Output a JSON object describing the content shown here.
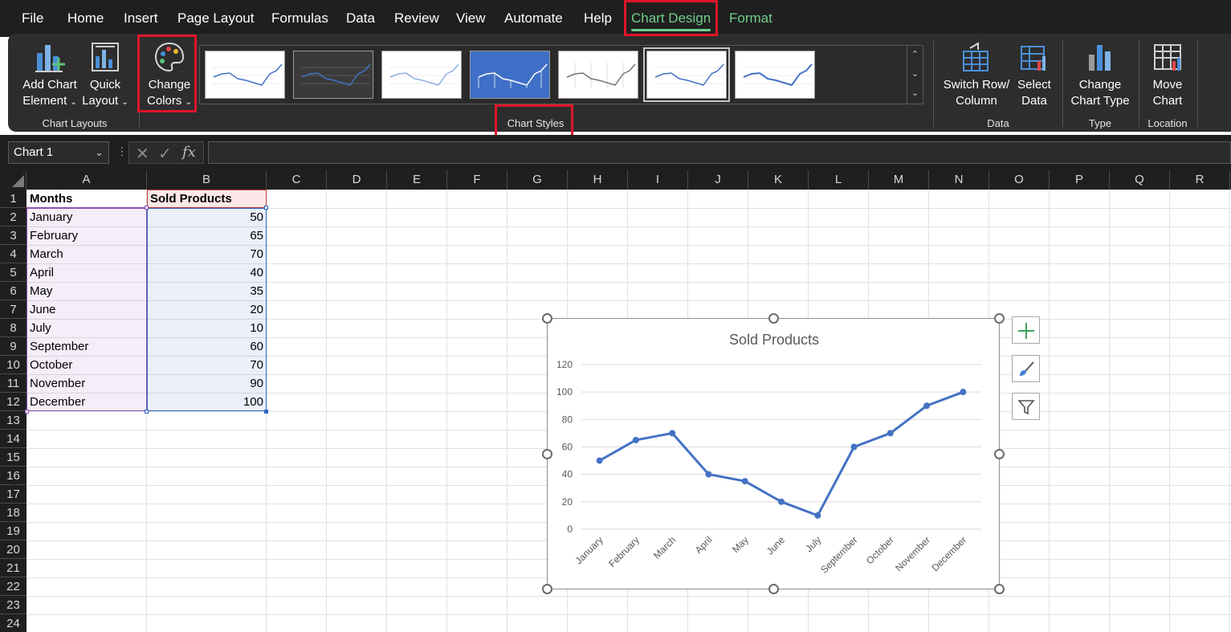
{
  "menu": {
    "items": [
      "File",
      "Home",
      "Insert",
      "Page Layout",
      "Formulas",
      "Data",
      "Review",
      "View",
      "Automate",
      "Help",
      "Chart Design",
      "Format"
    ],
    "active": "Chart Design"
  },
  "ribbon": {
    "chart_layouts": {
      "add_chart_element": [
        "Add Chart",
        "Element"
      ],
      "quick_layout": [
        "Quick",
        "Layout"
      ],
      "group_label": "Chart Layouts"
    },
    "change_colors": [
      "Change",
      "Colors"
    ],
    "chart_styles": {
      "group_label": "Chart Styles",
      "thumbnails": [
        "Style 1",
        "Style 2",
        "Style 3",
        "Style 4",
        "Style 5",
        "Style 6",
        "Style 7"
      ],
      "selected_index": 5
    },
    "data": {
      "switch_row_column": [
        "Switch Row/",
        "Column"
      ],
      "select_data": [
        "Select",
        "Data"
      ],
      "group_label": "Data"
    },
    "type": {
      "change_chart_type": [
        "Change",
        "Chart Type"
      ],
      "group_label": "Type"
    },
    "location": {
      "move_chart": [
        "Move",
        "Chart"
      ],
      "group_label": "Location"
    }
  },
  "formula_bar": {
    "name_box": "Chart 1",
    "fx": "fx",
    "value": ""
  },
  "grid": {
    "columns": [
      "A",
      "B",
      "C",
      "D",
      "E",
      "F",
      "G",
      "H",
      "I",
      "J",
      "K",
      "L",
      "M",
      "N",
      "O",
      "P",
      "Q",
      "R"
    ],
    "rows": [
      "1",
      "2",
      "3",
      "4",
      "5",
      "6",
      "7",
      "8",
      "9",
      "10",
      "11",
      "12",
      "13",
      "14",
      "15",
      "16",
      "17",
      "18",
      "19",
      "20",
      "21",
      "22",
      "23",
      "24"
    ],
    "header": [
      "Months",
      "Sold Products"
    ],
    "data": [
      [
        "January",
        "50"
      ],
      [
        "February",
        "65"
      ],
      [
        "March",
        "70"
      ],
      [
        "April",
        "40"
      ],
      [
        "May",
        "35"
      ],
      [
        "June",
        "20"
      ],
      [
        "July",
        "10"
      ],
      [
        "September",
        "60"
      ],
      [
        "October",
        "70"
      ],
      [
        "November",
        "90"
      ],
      [
        "December",
        "100"
      ]
    ]
  },
  "chart_data": {
    "type": "line",
    "title": "Sold Products",
    "categories": [
      "January",
      "February",
      "March",
      "April",
      "May",
      "June",
      "July",
      "September",
      "October",
      "November",
      "December"
    ],
    "series": [
      {
        "name": "Sold Products",
        "values": [
          50,
          65,
          70,
          40,
          35,
          20,
          10,
          60,
          70,
          90,
          100
        ],
        "color": "#4472c4"
      }
    ],
    "yticks": [
      "0",
      "20",
      "40",
      "60",
      "80",
      "100",
      "120"
    ],
    "ylim": [
      0,
      120
    ],
    "grid": true,
    "legend": "none"
  },
  "colors": {
    "accent": "#6fcf8c",
    "highlight": "#e0142a",
    "series": "#4472c4"
  },
  "chart_side_buttons": [
    "plus-icon",
    "brush-icon",
    "filter-icon"
  ]
}
